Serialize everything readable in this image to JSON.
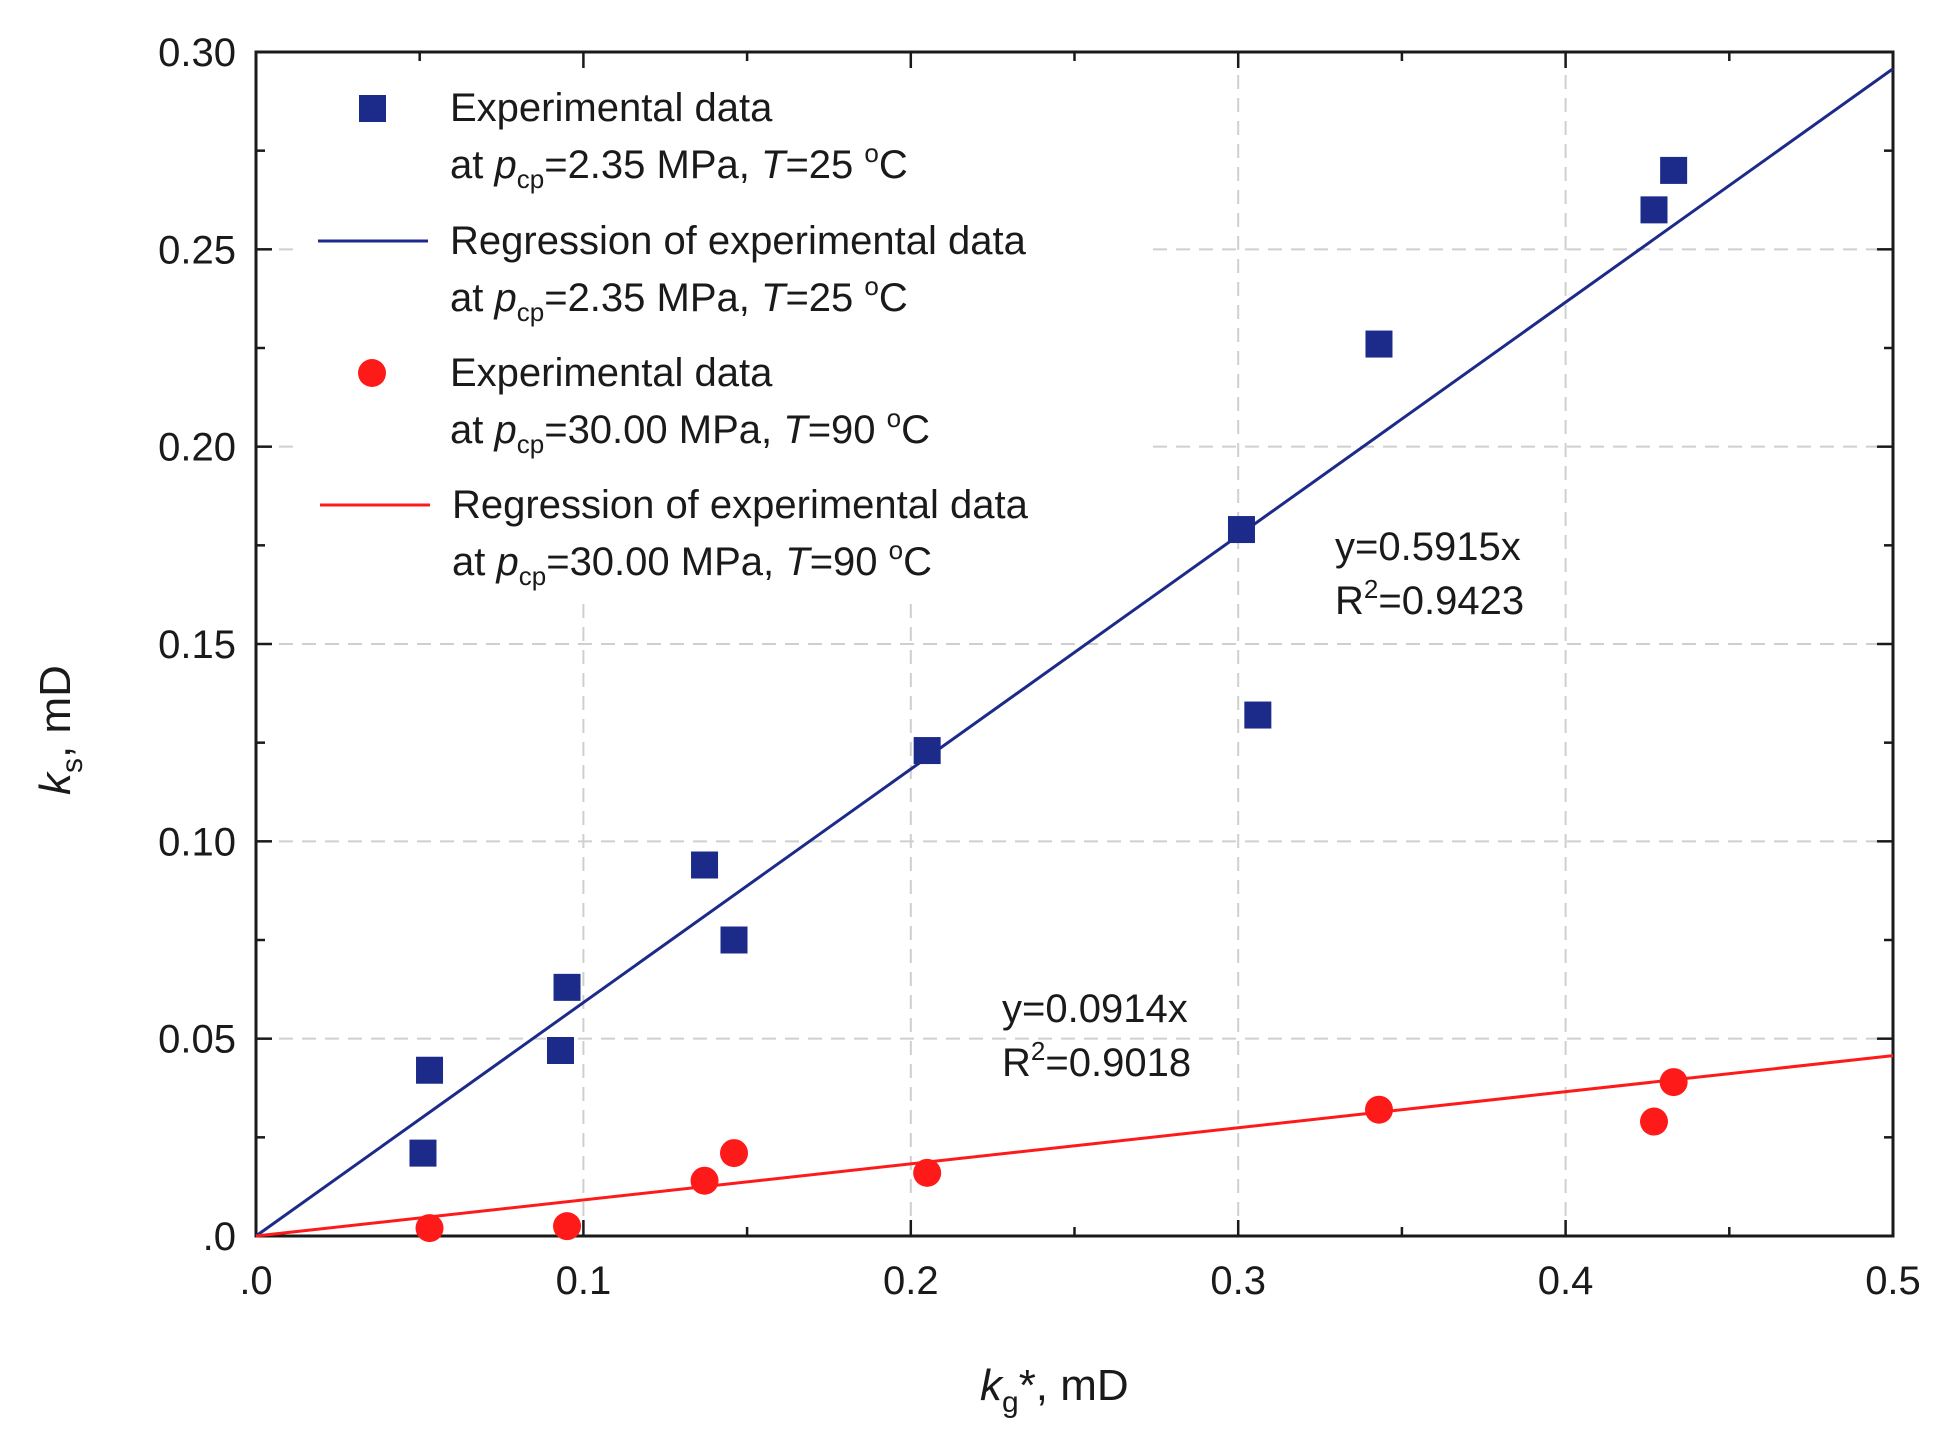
{
  "chart_data": {
    "type": "scatter",
    "title": "",
    "xlabel": {
      "main": "k",
      "sub": "g",
      "suffix": "*, mD"
    },
    "ylabel": {
      "main": "k",
      "sub": "s",
      "suffix": ", mD"
    },
    "xlim": [
      0.0,
      0.5
    ],
    "ylim": [
      0.0,
      0.3
    ],
    "grid": true,
    "legend_position": "top-left",
    "x_ticks": [
      0.0,
      0.1,
      0.2,
      0.3,
      0.4,
      0.5
    ],
    "y_ticks": [
      0.0,
      0.05,
      0.1,
      0.15,
      0.2,
      0.25,
      0.3
    ],
    "x_tick_labels": [
      ".0",
      "0.1",
      "0.2",
      "0.3",
      "0.4",
      "0.5"
    ],
    "y_tick_labels": [
      ".0",
      "0.05",
      "0.10",
      "0.15",
      "0.20",
      "0.25",
      "0.30"
    ],
    "series": [
      {
        "name": "Experimental data at pcp=2.35 MPa, T=25 oC",
        "kind": "scatter",
        "marker": "square",
        "color": "#1c2a8a",
        "legend_line1": "Experimental data",
        "legend_line2": {
          "a": "at ",
          "p": "p",
          "sub": "cp",
          "b": "=2.35 MPa, ",
          "t": "T",
          "c": "=25 ",
          "sup": "o",
          "d": "C"
        },
        "x": [
          0.051,
          0.053,
          0.093,
          0.095,
          0.137,
          0.146,
          0.205,
          0.301,
          0.306,
          0.343,
          0.427,
          0.433
        ],
        "y": [
          0.021,
          0.042,
          0.047,
          0.063,
          0.094,
          0.075,
          0.123,
          0.179,
          0.132,
          0.226,
          0.26,
          0.27
        ]
      },
      {
        "name": "Regression of experimental data at pcp=2.35 MPa, T=25 oC",
        "kind": "line",
        "color": "#1c2a8a",
        "slope": 0.5915,
        "legend_line1": "Regression of experimental data",
        "legend_line2": {
          "a": "at ",
          "p": "p",
          "sub": "cp",
          "b": "=2.35 MPa, ",
          "t": "T",
          "c": "=25 ",
          "sup": "o",
          "d": "C"
        }
      },
      {
        "name": "Experimental data at pcp=30.00 MPa, T=90 oC",
        "kind": "scatter",
        "marker": "circle",
        "color": "#ff1a1a",
        "legend_line1": "Experimental data",
        "legend_line2": {
          "a": "at ",
          "p": "p",
          "sub": "cp",
          "b": "=30.00 MPa, ",
          "t": "T",
          "c": "=90 ",
          "sup": "o",
          "d": "C"
        },
        "x": [
          0.053,
          0.095,
          0.137,
          0.146,
          0.205,
          0.343,
          0.427,
          0.433
        ],
        "y": [
          0.002,
          0.0025,
          0.014,
          0.021,
          0.016,
          0.032,
          0.029,
          0.039
        ]
      },
      {
        "name": "Regression of experimental data at pcp=30.00 MPa, T=90 oC",
        "kind": "line",
        "color": "#ff1a1a",
        "slope": 0.0914,
        "legend_line1": "Regression of experimental data",
        "legend_line2": {
          "a": "at ",
          "p": "p",
          "sub": "cp",
          "b": "=30.00 MPa, ",
          "t": "T",
          "c": "=90 ",
          "sup": "o",
          "d": "C"
        }
      }
    ],
    "annotations": [
      {
        "eq": "y=0.5915x",
        "r_pre": "R",
        "r_sup": "2",
        "r_post": "=0.9423",
        "color": "#1a1a1a"
      },
      {
        "eq": "y=0.0914x",
        "r_pre": "R",
        "r_sup": "2",
        "r_post": "=0.9018",
        "color": "#1a1a1a"
      }
    ]
  }
}
